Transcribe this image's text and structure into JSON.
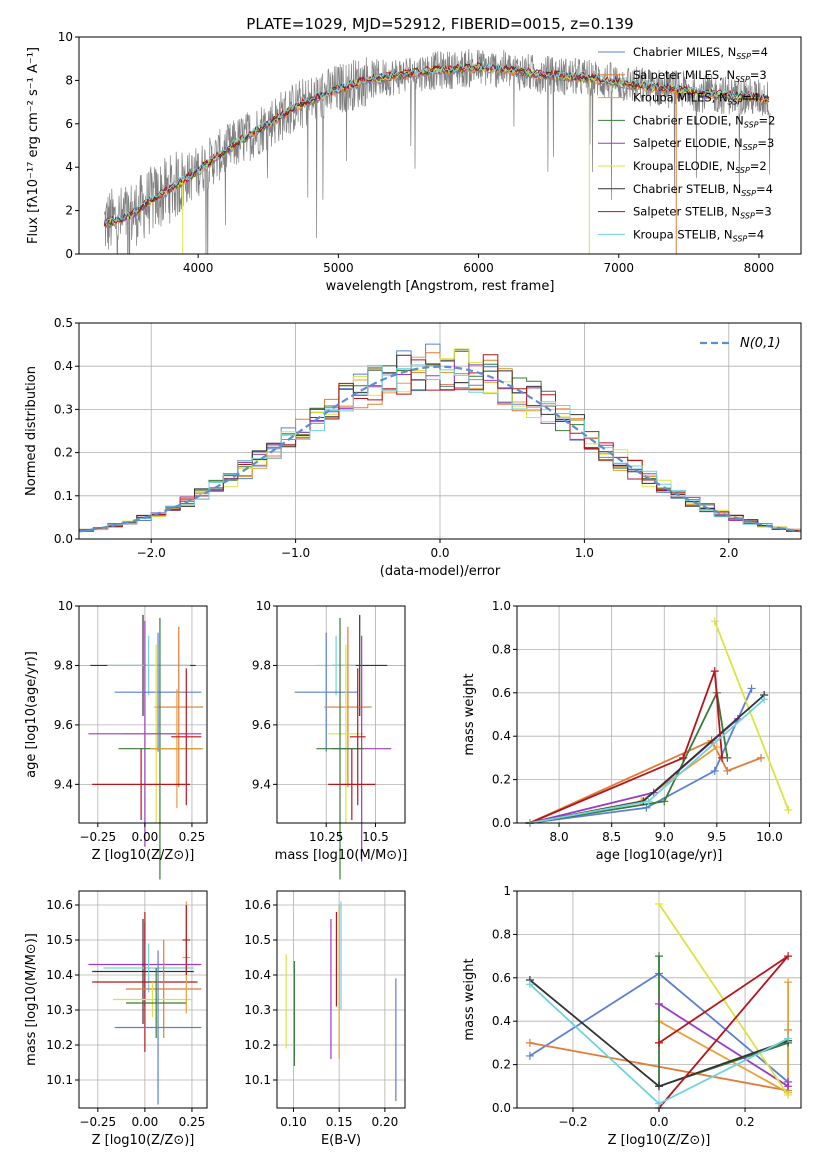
{
  "figure_title": "PLATE=1029, MJD=52912, FIBERID=0015, z=0.139",
  "models": [
    {
      "name": "Chabrier MILES",
      "nssp": "4",
      "color": "#5b7fd4"
    },
    {
      "name": "Salpeter MILES",
      "nssp": "3",
      "color": "#e07b39"
    },
    {
      "name": "Kroupa MILES",
      "nssp": "4",
      "color": "#e6a03c"
    },
    {
      "name": "Chabrier ELODIE",
      "nssp": "2",
      "color": "#3a7a3a"
    },
    {
      "name": "Salpeter ELODIE",
      "nssp": "3",
      "color": "#9b3bbf"
    },
    {
      "name": "Kroupa ELODIE",
      "nssp": "2",
      "color": "#dde33e"
    },
    {
      "name": "Chabrier STELIB",
      "nssp": "4",
      "color": "#333333"
    },
    {
      "name": "Salpeter STELIB",
      "nssp": "3",
      "color": "#b5161c"
    },
    {
      "name": "Kroupa STELIB",
      "nssp": "4",
      "color": "#6fd3dc"
    }
  ],
  "nssp_prefix": "N",
  "nssp_subscript": "SSP",
  "chart_data": [
    {
      "id": "spectrum",
      "type": "line",
      "xlabel": "wavelength [Angstrom, rest frame]",
      "ylabel": "Flux [fλ10⁻¹⁷ erg cm⁻² s⁻¹ A⁻¹]",
      "xlim": [
        3150,
        8300
      ],
      "ylim": [
        0,
        10
      ],
      "xticks": [
        4000,
        5000,
        6000,
        7000,
        8000
      ],
      "yticks": [
        0,
        2,
        4,
        6,
        8,
        10
      ],
      "data_series": "observed flux (gray)",
      "legend_position": "upper right",
      "model_anchors": {
        "x": [
          3330,
          3450,
          3550,
          3650,
          3750,
          3850,
          3950,
          4100,
          4250,
          4400,
          4550,
          4700,
          4850,
          5000,
          5200,
          5400,
          5600,
          5800,
          6000,
          6200,
          6400,
          6600,
          6800,
          7000,
          7200,
          7400,
          7600,
          7800,
          8000,
          8080
        ],
        "y": [
          1.4,
          1.6,
          1.9,
          2.4,
          2.8,
          3.2,
          3.6,
          4.3,
          5.0,
          5.6,
          6.2,
          6.8,
          7.2,
          7.6,
          8.0,
          8.2,
          8.4,
          8.5,
          8.6,
          8.5,
          8.3,
          8.2,
          8.1,
          7.9,
          7.7,
          7.6,
          7.4,
          7.3,
          7.2,
          7.1
        ]
      }
    },
    {
      "id": "residual_histogram",
      "type": "histogram",
      "xlabel": "(data-model)/error",
      "ylabel": "Normed distribution",
      "xlim": [
        -2.5,
        2.5
      ],
      "ylim": [
        0,
        0.5
      ],
      "xticks": [
        -2,
        -1,
        0,
        1,
        2
      ],
      "yticks": [
        0.0,
        0.1,
        0.2,
        0.3,
        0.4,
        0.5
      ],
      "grid": true,
      "bin_width": 0.1,
      "reference_curve_label": "N(0,1)",
      "legend_position": "upper right"
    },
    {
      "id": "age_vs_Z",
      "type": "errorbar",
      "xlabel": "Z [log10(Z/Z⊙)]",
      "ylabel": "age  [log10(age/yr)]",
      "xlim": [
        -0.35,
        0.33
      ],
      "ylim": [
        9.27,
        10.0
      ],
      "xticks": [
        -0.25,
        0.0,
        0.25
      ],
      "yticks": [
        9.4,
        9.6,
        9.8,
        10.0
      ],
      "points": [
        {
          "x": -0.01,
          "y": 9.8,
          "xerr": 0.28,
          "yerr": 0.17,
          "model": 6
        },
        {
          "x": 0.02,
          "y": 9.8,
          "xerr": 0.22,
          "yerr": 0.1,
          "model": 8
        },
        {
          "x": 0.07,
          "y": 9.71,
          "xerr": 0.23,
          "yerr": 0.2,
          "model": 0
        },
        {
          "x": 0.18,
          "y": 9.66,
          "xerr": 0.13,
          "yerr": 0.27,
          "model": 1
        },
        {
          "x": 0.06,
          "y": 9.57,
          "xerr": 0.17,
          "yerr": 0.3,
          "model": 5
        },
        {
          "x": 0.0,
          "y": 9.57,
          "xerr": 0.3,
          "yerr": 0.38,
          "model": 4
        },
        {
          "x": 0.08,
          "y": 9.52,
          "xerr": 0.22,
          "yerr": 0.44,
          "model": 3
        },
        {
          "x": 0.17,
          "y": 9.52,
          "xerr": 0.14,
          "yerr": 0.2,
          "model": 2
        },
        {
          "x": -0.02,
          "y": 9.4,
          "xerr": 0.26,
          "yerr": 0.12,
          "model": 7
        },
        {
          "x": 0.22,
          "y": 9.56,
          "xerr": 0.08,
          "yerr": 0.23,
          "model": 7
        }
      ]
    },
    {
      "id": "age_vs_mass",
      "type": "errorbar",
      "xlabel": "mass [log10(M/M⊙)]",
      "xlim": [
        10.0,
        10.65
      ],
      "ylim": [
        9.27,
        10.0
      ],
      "xticks": [
        10.25,
        10.5
      ],
      "yticks": [
        9.4,
        9.6,
        9.8,
        10.0
      ],
      "points": [
        {
          "x": 10.42,
          "y": 9.8,
          "xerr": 0.14,
          "yerr": 0.17,
          "model": 6
        },
        {
          "x": 10.3,
          "y": 9.8,
          "xerr": 0.1,
          "yerr": 0.1,
          "model": 8
        },
        {
          "x": 10.25,
          "y": 9.71,
          "xerr": 0.16,
          "yerr": 0.2,
          "model": 0
        },
        {
          "x": 10.36,
          "y": 9.66,
          "xerr": 0.12,
          "yerr": 0.27,
          "model": 1
        },
        {
          "x": 10.35,
          "y": 9.57,
          "xerr": 0.09,
          "yerr": 0.3,
          "model": 5
        },
        {
          "x": 10.43,
          "y": 9.52,
          "xerr": 0.15,
          "yerr": 0.38,
          "model": 4
        },
        {
          "x": 10.32,
          "y": 9.52,
          "xerr": 0.12,
          "yerr": 0.44,
          "model": 3
        },
        {
          "x": 10.38,
          "y": 9.4,
          "xerr": 0.12,
          "yerr": 0.12,
          "model": 7
        },
        {
          "x": 10.41,
          "y": 9.56,
          "xerr": 0.04,
          "yerr": 0.23,
          "model": 7
        }
      ]
    },
    {
      "id": "massweight_vs_age",
      "type": "line",
      "xlabel": "age  [log10(age/yr)]",
      "ylabel": "mass weight",
      "xlim": [
        7.6,
        10.3
      ],
      "ylim": [
        0,
        1.0
      ],
      "xticks": [
        8.0,
        8.5,
        9.0,
        9.5,
        10.0
      ],
      "yticks": [
        0.0,
        0.2,
        0.4,
        0.6,
        0.8,
        1.0
      ],
      "grid": true,
      "series": [
        {
          "model": 0,
          "x": [
            7.72,
            8.83,
            9.48,
            9.83
          ],
          "y": [
            0.0,
            0.07,
            0.24,
            0.62
          ]
        },
        {
          "model": 1,
          "x": [
            7.72,
            9.45,
            9.6,
            9.92
          ],
          "y": [
            0.0,
            0.38,
            0.24,
            0.3
          ]
        },
        {
          "model": 2,
          "x": [
            7.72,
            8.78,
            9.5
          ],
          "y": [
            0.0,
            0.1,
            0.35
          ]
        },
        {
          "model": 3,
          "x": [
            7.72,
            9.0,
            9.5,
            9.6
          ],
          "y": [
            0.0,
            0.1,
            0.6,
            0.3
          ]
        },
        {
          "model": 4,
          "x": [
            7.72,
            8.9,
            9.7
          ],
          "y": [
            0.0,
            0.14,
            0.48
          ]
        },
        {
          "model": 5,
          "x": [
            9.48,
            10.18
          ],
          "y": [
            0.93,
            0.06
          ]
        },
        {
          "model": 6,
          "x": [
            7.72,
            8.8,
            9.95
          ],
          "y": [
            0.0,
            0.1,
            0.59
          ]
        },
        {
          "model": 7,
          "x": [
            7.72,
            9.18,
            9.48,
            9.55
          ],
          "y": [
            0.0,
            0.3,
            0.7,
            0.3
          ]
        },
        {
          "model": 8,
          "x": [
            7.72,
            8.85,
            9.95
          ],
          "y": [
            0.0,
            0.1,
            0.57
          ]
        }
      ]
    },
    {
      "id": "mass_vs_Z",
      "type": "errorbar",
      "xlabel": "Z [log10(Z/Z⊙)]",
      "ylabel": "mass [log10(M/M⊙)]",
      "xlim": [
        -0.35,
        0.33
      ],
      "ylim": [
        10.02,
        10.64
      ],
      "xticks": [
        -0.25,
        0.0,
        0.25
      ],
      "yticks": [
        10.1,
        10.2,
        10.3,
        10.4,
        10.5,
        10.6
      ],
      "points": [
        {
          "x": 0.0,
          "y": 10.43,
          "xerr": 0.3,
          "yerr": 0.12,
          "model": 4
        },
        {
          "x": -0.01,
          "y": 10.41,
          "xerr": 0.27,
          "yerr": 0.15,
          "model": 6
        },
        {
          "x": 0.02,
          "y": 10.42,
          "xerr": 0.24,
          "yerr": 0.07,
          "model": 8
        },
        {
          "x": 0.0,
          "y": 10.38,
          "xerr": 0.28,
          "yerr": 0.2,
          "model": 7
        },
        {
          "x": 0.1,
          "y": 10.36,
          "xerr": 0.2,
          "yerr": 0.14,
          "model": 1
        },
        {
          "x": 0.04,
          "y": 10.33,
          "xerr": 0.21,
          "yerr": 0.05,
          "model": 5
        },
        {
          "x": 0.06,
          "y": 10.32,
          "xerr": 0.16,
          "yerr": 0.1,
          "model": 3
        },
        {
          "x": 0.07,
          "y": 10.25,
          "xerr": 0.23,
          "yerr": 0.22,
          "model": 0
        },
        {
          "x": 0.22,
          "y": 10.45,
          "xerr": 0.02,
          "yerr": 0.16,
          "model": 2
        },
        {
          "x": 0.22,
          "y": 10.5,
          "xerr": 0.02,
          "yerr": 0.1,
          "model": 7
        }
      ]
    },
    {
      "id": "mass_vs_EBV",
      "type": "errorbar",
      "xlabel": "E(B-V)",
      "xlim": [
        0.082,
        0.222
      ],
      "ylim": [
        10.02,
        10.64
      ],
      "xticks": [
        0.1,
        0.15,
        0.2
      ],
      "yticks": [
        10.1,
        10.2,
        10.3,
        10.4,
        10.5,
        10.6
      ],
      "vbars": [
        {
          "x": 0.092,
          "ylo": 10.19,
          "yhi": 10.46,
          "model": 5
        },
        {
          "x": 0.101,
          "ylo": 10.14,
          "yhi": 10.44,
          "model": 3
        },
        {
          "x": 0.141,
          "ylo": 10.16,
          "yhi": 10.56,
          "model": 4
        },
        {
          "x": 0.147,
          "ylo": 10.31,
          "yhi": 10.58,
          "model": 7
        },
        {
          "x": 0.15,
          "ylo": 10.16,
          "yhi": 10.6,
          "model": 2
        },
        {
          "x": 0.152,
          "ylo": 10.3,
          "yhi": 10.61,
          "model": 8
        },
        {
          "x": 0.212,
          "ylo": 10.04,
          "yhi": 10.39,
          "model": 0
        }
      ]
    },
    {
      "id": "massweight_vs_Z",
      "type": "line",
      "xlabel": "Z [log10(Z/Z⊙)]",
      "ylabel": "mass weight",
      "xlim": [
        -0.33,
        0.33
      ],
      "ylim": [
        0,
        1.0
      ],
      "xticks": [
        -0.2,
        0.0,
        0.2
      ],
      "yticks": [
        0.0,
        0.2,
        0.4,
        0.6,
        0.8,
        1.0
      ],
      "grid": true,
      "series": [
        {
          "model": 0,
          "x": [
            -0.3,
            0.0,
            0.3
          ],
          "y": [
            0.24,
            0.62,
            0.12
          ]
        },
        {
          "model": 1,
          "x": [
            -0.3,
            0.3,
            0.3
          ],
          "y": [
            0.3,
            0.08,
            0.36
          ]
        },
        {
          "model": 2,
          "x": [
            0.0,
            0.3,
            0.3
          ],
          "y": [
            0.4,
            0.07,
            0.58
          ]
        },
        {
          "model": 3,
          "x": [
            0.0,
            0.0,
            0.3
          ],
          "y": [
            0.7,
            0.1,
            0.3
          ]
        },
        {
          "model": 4,
          "x": [
            0.0,
            0.3,
            0.3
          ],
          "y": [
            0.48,
            0.1,
            0.12
          ]
        },
        {
          "model": 5,
          "x": [
            0.0,
            0.3
          ],
          "y": [
            0.94,
            0.06
          ]
        },
        {
          "model": 6,
          "x": [
            -0.3,
            0.0,
            0.3
          ],
          "y": [
            0.59,
            0.1,
            0.31
          ]
        },
        {
          "model": 7,
          "x": [
            0.0,
            0.3,
            0.0
          ],
          "y": [
            0.0,
            0.7,
            0.3
          ]
        },
        {
          "model": 8,
          "x": [
            -0.3,
            0.0,
            0.3
          ],
          "y": [
            0.57,
            0.02,
            0.32
          ]
        }
      ]
    }
  ]
}
